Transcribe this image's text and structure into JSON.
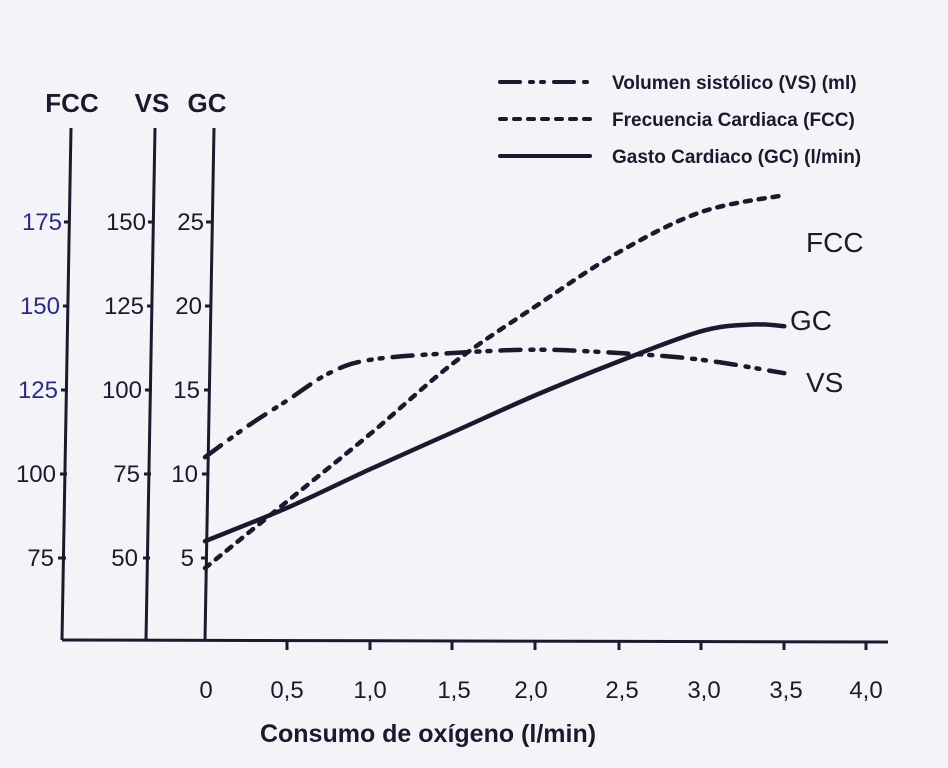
{
  "chart_data": {
    "type": "line",
    "xlabel": "Consumo de oxígeno (l/min)",
    "x_ticks": [
      "0",
      "0,5",
      "1,0",
      "1,5",
      "2,0",
      "2,5",
      "3,0",
      "3,5",
      "4,0"
    ],
    "xlim": [
      0,
      4
    ],
    "axes": [
      {
        "name": "FCC",
        "ticks": [
          "75",
          "100",
          "125",
          "150",
          "175"
        ],
        "range": [
          50,
          200
        ]
      },
      {
        "name": "VS",
        "ticks": [
          "50",
          "75",
          "100",
          "125",
          "150"
        ],
        "range": [
          25,
          175
        ]
      },
      {
        "name": "GC",
        "ticks": [
          "5",
          "10",
          "15",
          "20",
          "25"
        ],
        "range": [
          0,
          30
        ]
      }
    ],
    "legend": {
      "position": "top-right",
      "items": [
        "Volumen sistólico (VS) (ml)",
        "Frecuencia Cardiaca (FCC)",
        "Gasto Cardiaco (GC) (l/min)"
      ]
    },
    "series": [
      {
        "name": "FCC",
        "label": "FCC",
        "axis": "FCC",
        "style": "dotted",
        "x": [
          0,
          0.5,
          1.0,
          1.5,
          2.0,
          2.5,
          3.0,
          3.5
        ],
        "y": [
          72,
          92,
          112,
          133,
          150,
          166,
          178,
          183
        ]
      },
      {
        "name": "VS",
        "label": "VS",
        "axis": "VS",
        "style": "dash-dot",
        "x": [
          0,
          0.25,
          0.5,
          0.75,
          1.0,
          1.5,
          2.0,
          2.5,
          3.0,
          3.5
        ],
        "y": [
          80,
          89,
          97,
          105,
          109,
          111,
          112,
          111,
          109,
          105
        ]
      },
      {
        "name": "GC",
        "label": "GC",
        "axis": "GC",
        "style": "solid",
        "x": [
          0,
          0.5,
          1.0,
          1.5,
          2.0,
          2.5,
          3.0,
          3.3,
          3.5
        ],
        "y": [
          6,
          8,
          10.3,
          12.5,
          14.7,
          16.7,
          18.5,
          18.9,
          18.8
        ]
      }
    ]
  }
}
